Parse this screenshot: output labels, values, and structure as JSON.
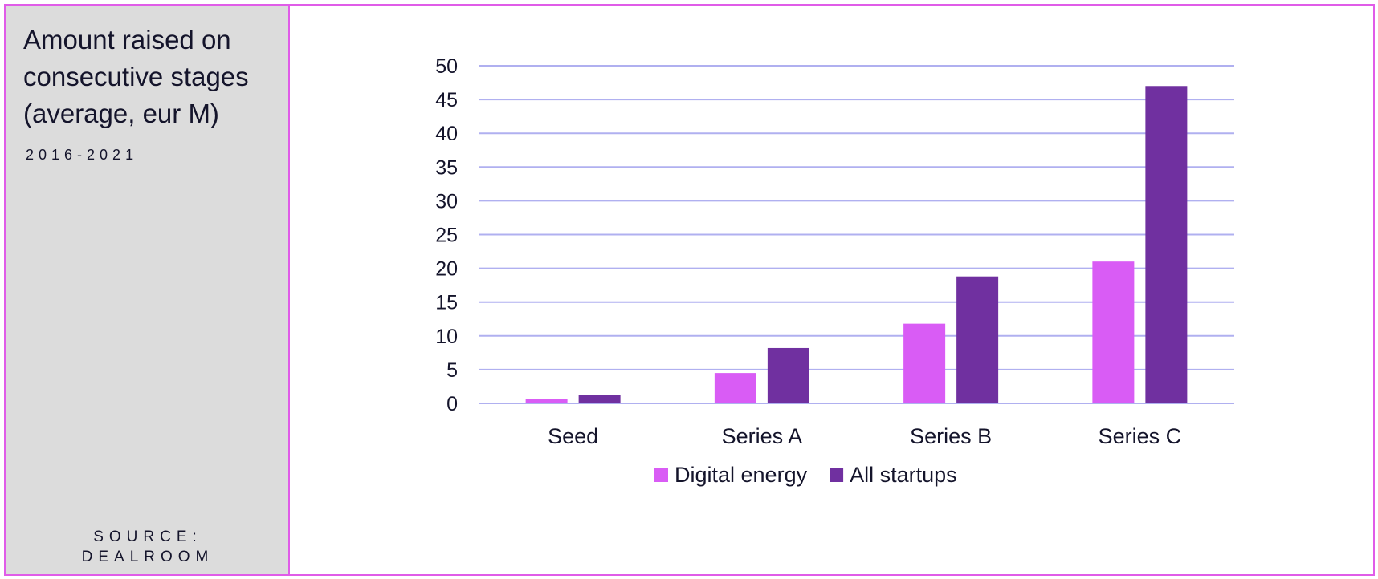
{
  "side_panel": {
    "title": "Amount raised on consecutive stages (average, eur M)",
    "years": "2016-2021",
    "source_line1": "SOURCE:",
    "source_line2": "DEALROOM"
  },
  "colors": {
    "border": "#e05ce8",
    "panel_bg": "#dcdcdc",
    "gridline": "#b0b0f0",
    "text": "#14142b"
  },
  "chart_data": {
    "type": "bar",
    "categories": [
      "Seed",
      "Series A",
      "Series B",
      "Series C"
    ],
    "series": [
      {
        "name": "Digital energy",
        "color": "#d95cf5",
        "values": [
          0.7,
          4.5,
          11.8,
          21.0
        ]
      },
      {
        "name": "All startups",
        "color": "#7030a0",
        "values": [
          1.2,
          8.2,
          18.8,
          47.0
        ]
      }
    ],
    "ylim": [
      0,
      50
    ],
    "yticks": [
      "0",
      "5",
      "10",
      "15",
      "20",
      "25",
      "30",
      "35",
      "40",
      "45",
      "50"
    ],
    "grid": true,
    "legend_position": "bottom"
  }
}
